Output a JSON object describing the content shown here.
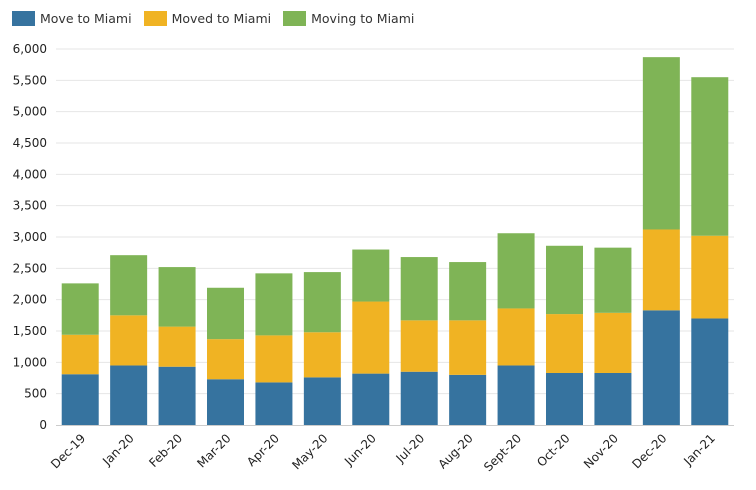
{
  "chart_data": {
    "type": "bar",
    "stacked": true,
    "title": "",
    "xlabel": "",
    "ylabel": "",
    "ylim": [
      0,
      6000
    ],
    "y_ticks": [
      "0",
      "500",
      "1,000",
      "1,500",
      "2,000",
      "2,500",
      "3,000",
      "3,500",
      "4,000",
      "4,500",
      "5,000",
      "5,500",
      "6,000"
    ],
    "y_tick_values": [
      0,
      500,
      1000,
      1500,
      2000,
      2500,
      3000,
      3500,
      4000,
      4500,
      5000,
      5500,
      6000
    ],
    "grid": true,
    "legend_position": "top-left",
    "categories": [
      "Dec-19",
      "Jan-20",
      "Feb-20",
      "Mar-20",
      "Apr-20",
      "May-20",
      "Jun-20",
      "Jul-20",
      "Aug-20",
      "Sept-20",
      "Oct-20",
      "Nov-20",
      "Dec-20",
      "Jan-21"
    ],
    "series": [
      {
        "name": "Move to Miami",
        "color": "#36739f",
        "values": [
          810,
          950,
          930,
          730,
          680,
          760,
          820,
          850,
          800,
          950,
          830,
          830,
          1830,
          1700
        ]
      },
      {
        "name": "Moved to Miami",
        "color": "#f0b323",
        "values": [
          630,
          800,
          640,
          640,
          750,
          720,
          1150,
          820,
          870,
          910,
          940,
          960,
          1290,
          1320
        ]
      },
      {
        "name": "Moving to Miami",
        "color": "#7fb456",
        "values": [
          820,
          960,
          950,
          820,
          990,
          960,
          830,
          1010,
          930,
          1200,
          1090,
          1040,
          2750,
          2530
        ]
      }
    ]
  }
}
